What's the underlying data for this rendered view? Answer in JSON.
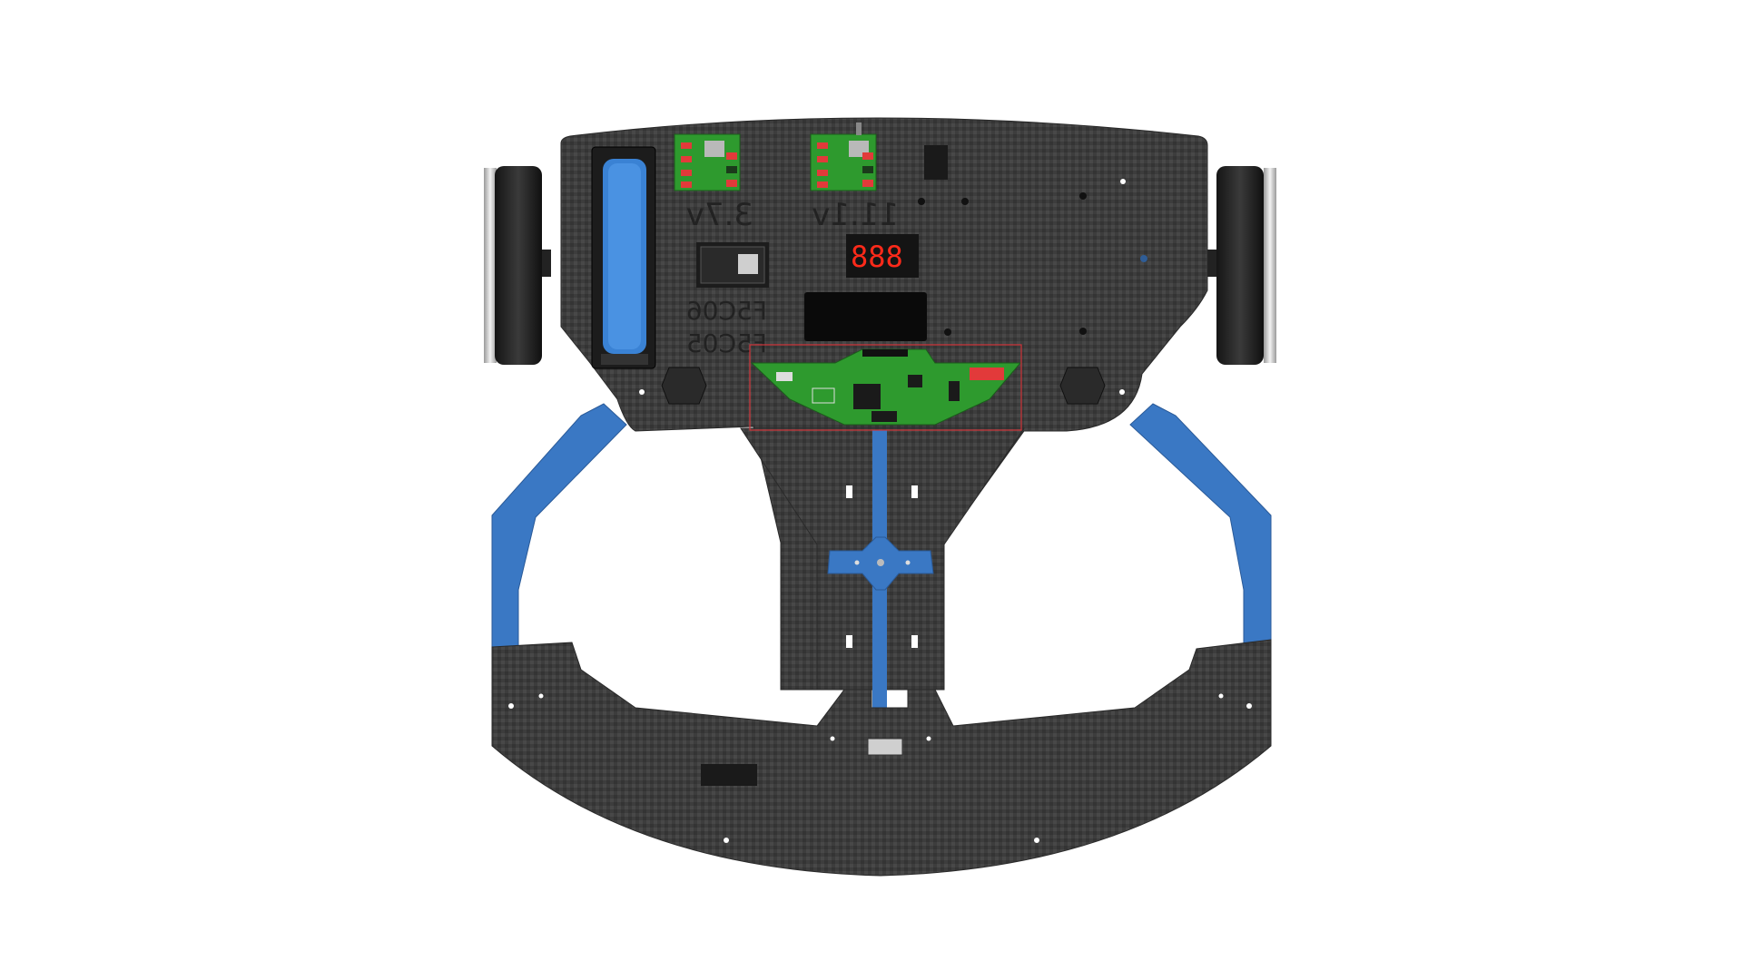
{
  "labels": {
    "voltage_left": "3.7v",
    "voltage_right": "11.1v",
    "module_top": "F5C06",
    "module_bottom": "F5C05",
    "display_digits": "888"
  },
  "colors": {
    "background": "#ffffff",
    "carbon": "#3f3f3f",
    "blue_arm": "#3a78c4",
    "pcb_green": "#2e9a2e",
    "display_red": "#ff2a1a",
    "selection_red": "#d0343a"
  }
}
